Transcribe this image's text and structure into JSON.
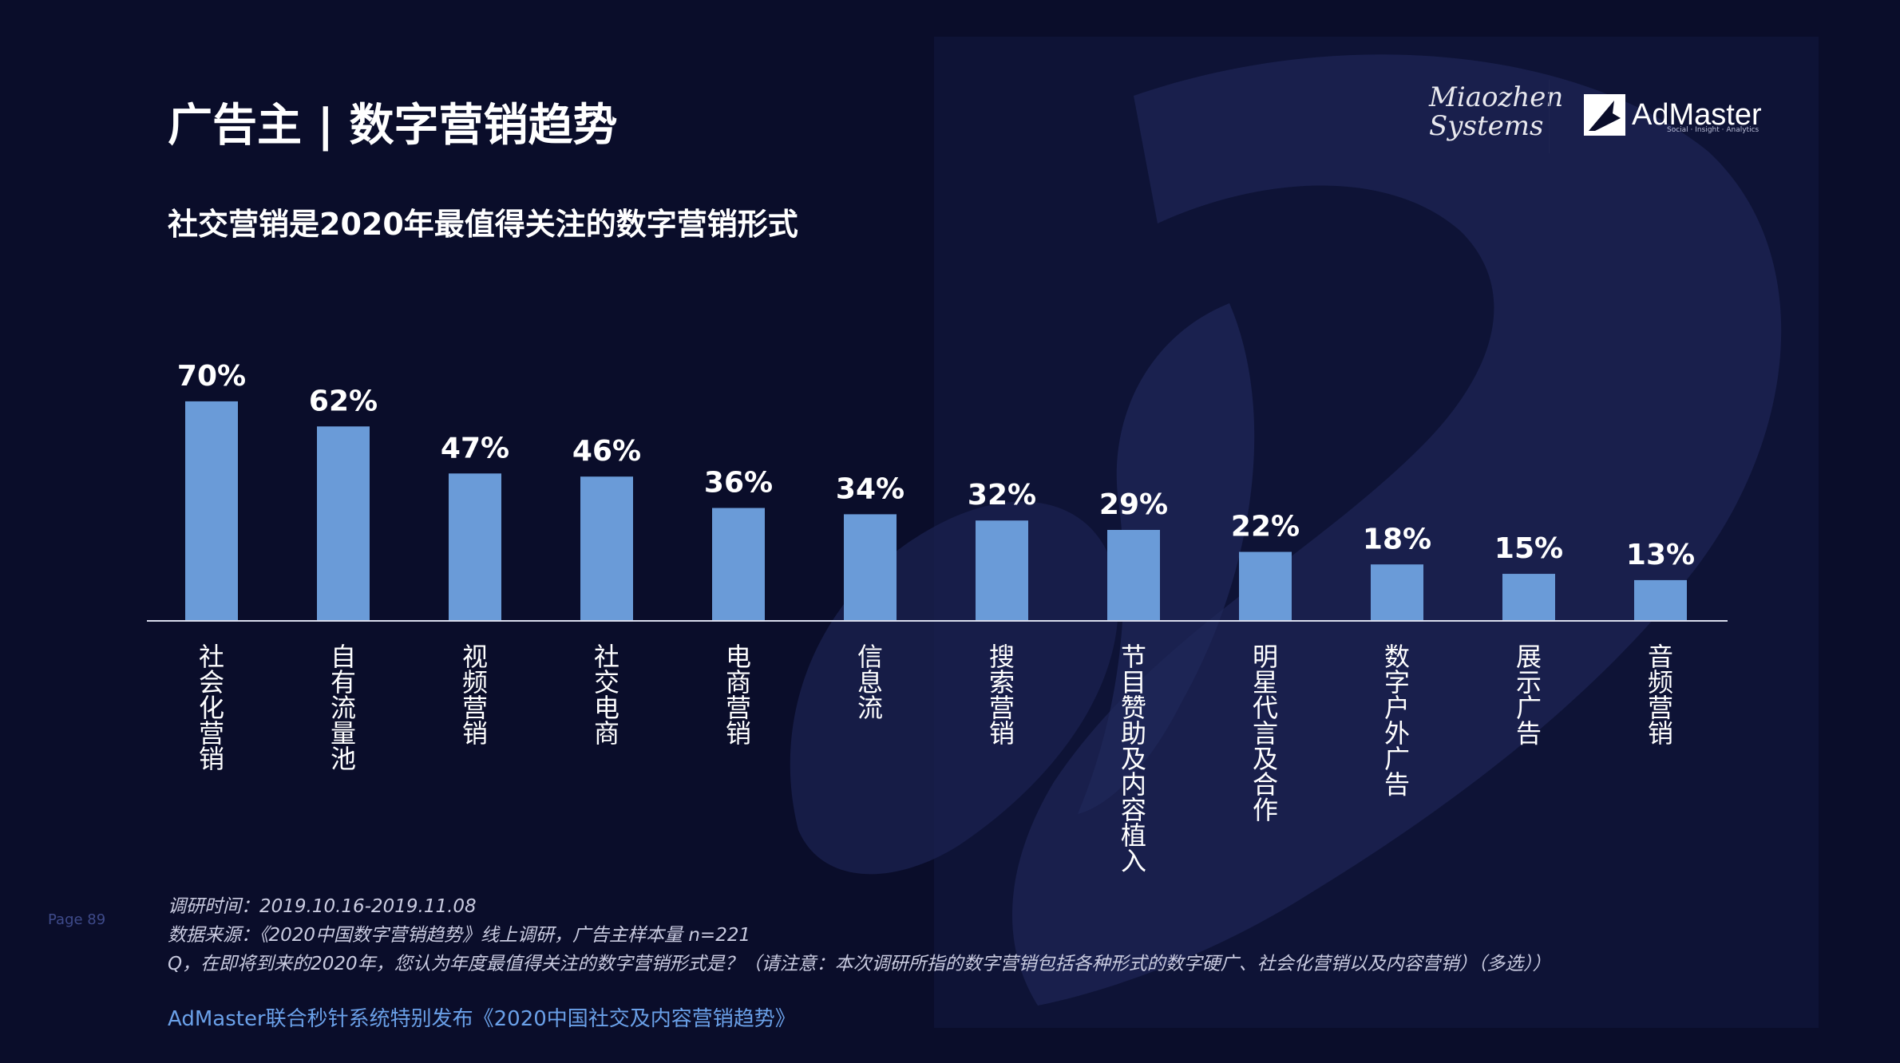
{
  "header": {
    "title": "广告主 | 数字营销趋势",
    "subtitle": "社交营销是2020年最值得关注的数字营销形式"
  },
  "logos": {
    "miaozhen_line1": "Miaozhen",
    "miaozhen_line2": "Systems",
    "admaster_name": "AdMaster",
    "admaster_tagline": "Social · Insight · Analytics"
  },
  "colors": {
    "background": "#0a0d2a",
    "bar": "#6a9bd8",
    "footer": "#6aa0e8"
  },
  "chart_data": {
    "type": "bar",
    "categories": [
      "社会化营销",
      "自有流量池",
      "视频营销",
      "社交电商",
      "电商营销",
      "信息流",
      "搜索营销",
      "节目赞助及内容植入",
      "明星代言及合作",
      "数字户外广告",
      "展示广告",
      "音频营销"
    ],
    "values": [
      70,
      62,
      47,
      46,
      36,
      34,
      32,
      29,
      22,
      18,
      15,
      13
    ],
    "value_labels": [
      "70%",
      "62%",
      "47%",
      "46%",
      "36%",
      "34%",
      "32%",
      "29%",
      "22%",
      "18%",
      "15%",
      "13%"
    ],
    "unit": "%",
    "ylim": [
      0,
      100
    ],
    "grid": false,
    "legend": "none",
    "category_label_orientation": "vertical"
  },
  "page_number": "Page  89",
  "notes": {
    "survey_time": "调研时间：2019.10.16-2019.11.08",
    "data_source": "数据来源：《2020中国数字营销趋势》线上调研，广告主样本量 n=221",
    "question": "Q，在即将到来的2020年，您认为年度最值得关注的数字营销形式是？（请注意：本次调研所指的数字营销包括各种形式的数字硬广、社会化营销以及内容营销）（多选））"
  },
  "footer": "AdMaster联合秒针系统特别发布《2020中国社交及内容营销趋势》"
}
